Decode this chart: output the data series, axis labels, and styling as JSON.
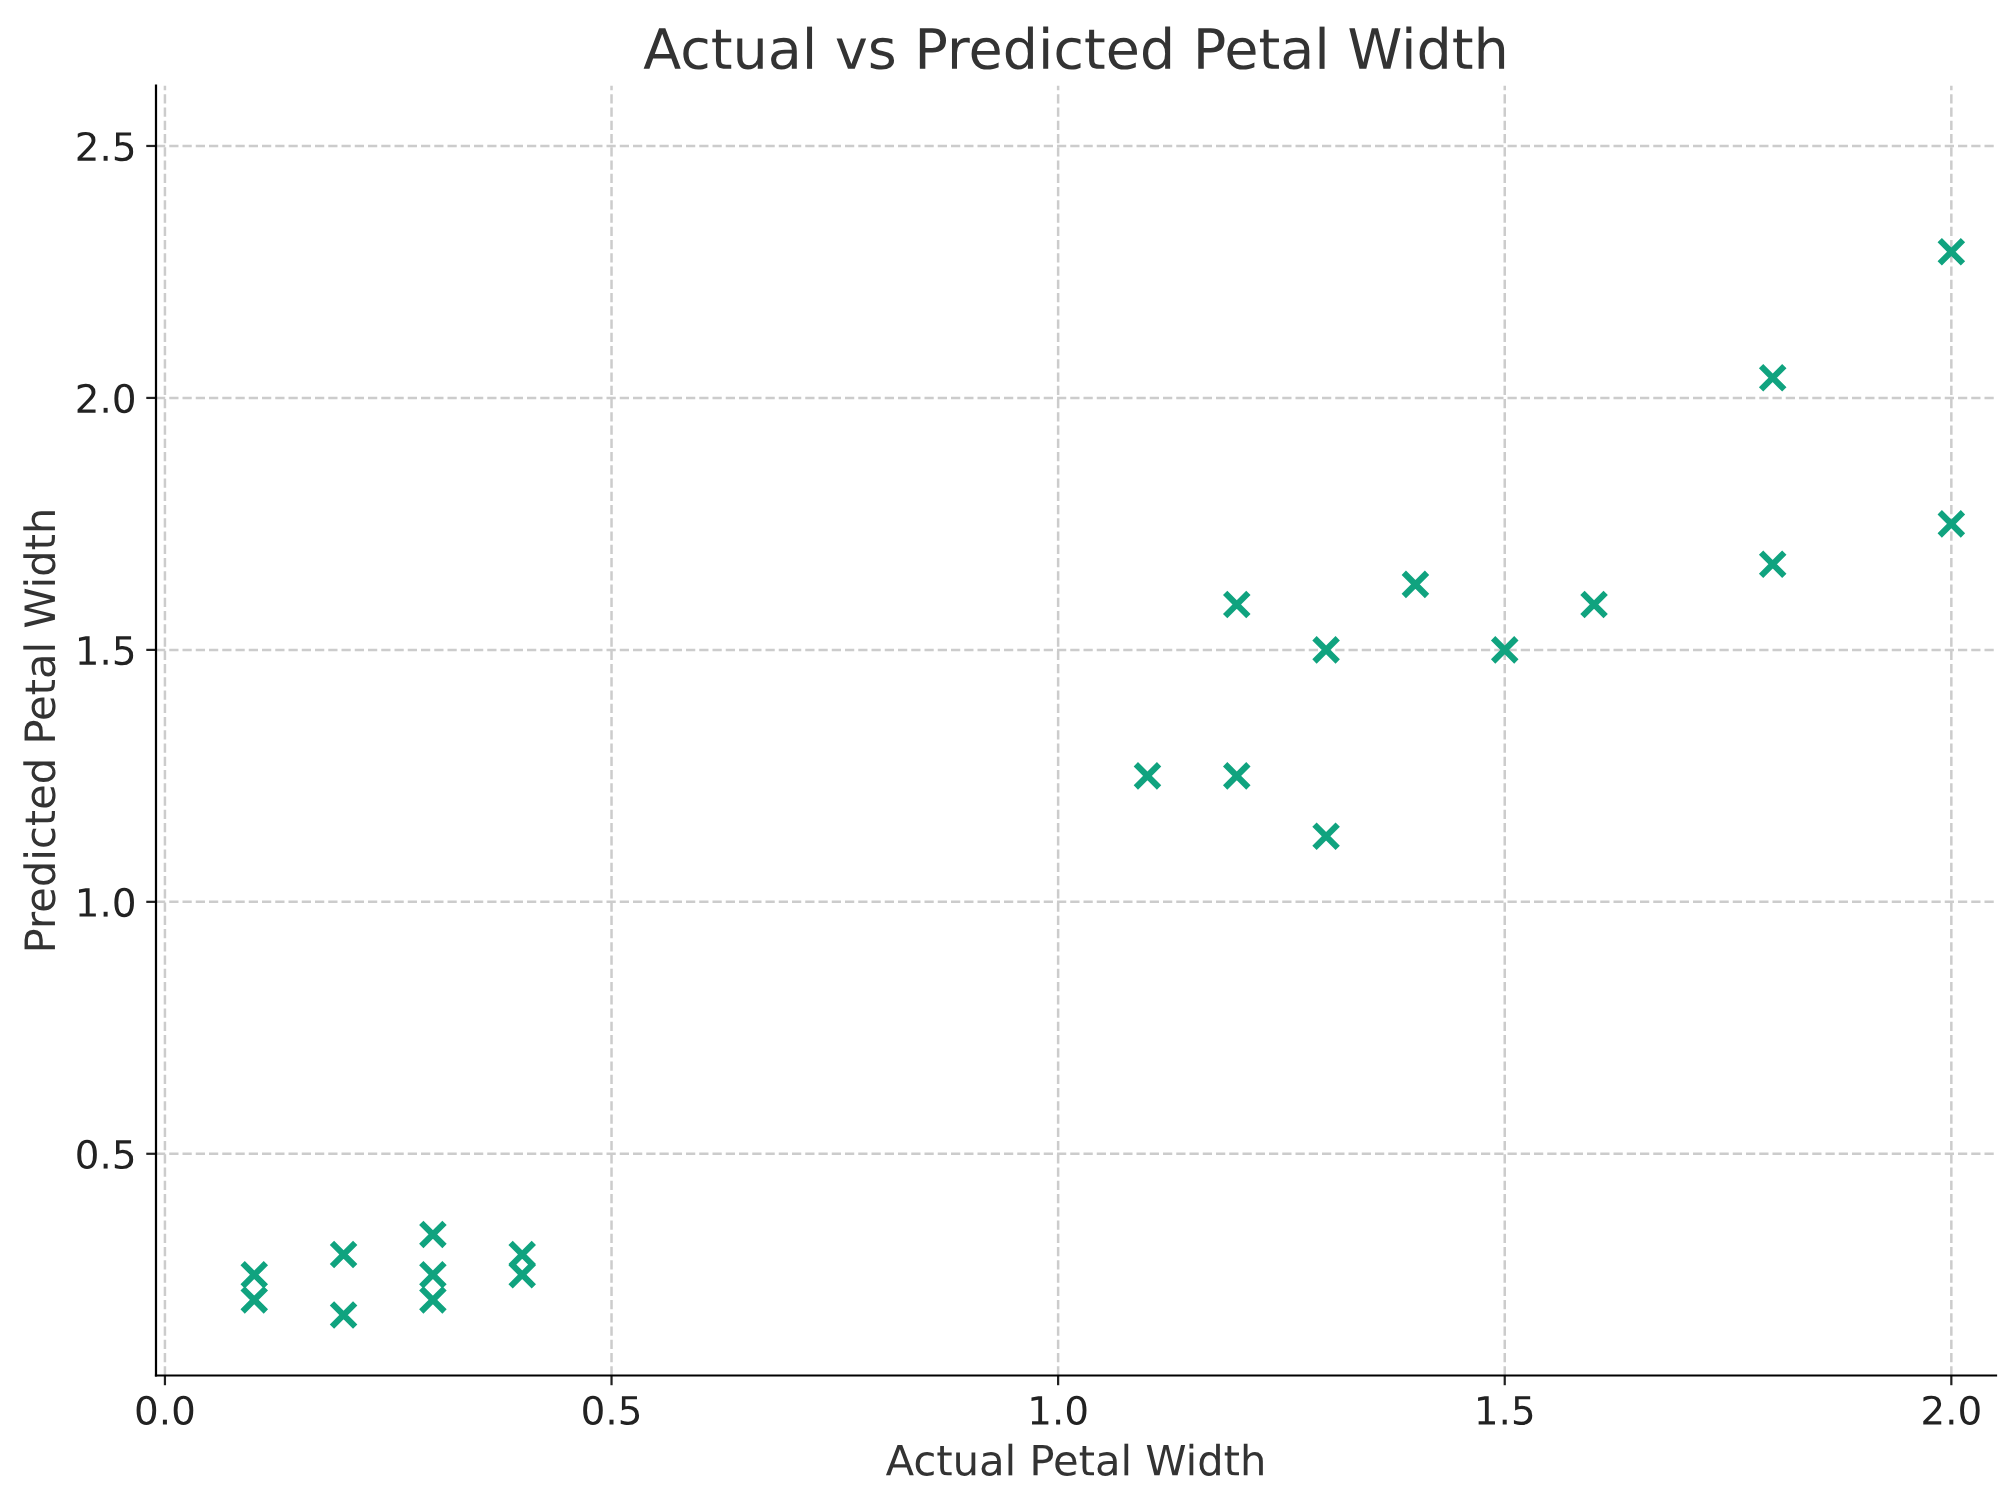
{
  "chart_data": {
    "type": "scatter",
    "title": "Actual vs Predicted Petal Width",
    "xlabel": "Actual Petal Width",
    "ylabel": "Predicted Petal Width",
    "x": [
      0.1,
      0.1,
      0.2,
      0.2,
      0.3,
      0.3,
      0.3,
      0.4,
      0.4,
      1.1,
      1.2,
      1.2,
      1.3,
      1.3,
      1.4,
      1.5,
      1.6,
      1.8,
      1.8,
      2.0,
      2.0
    ],
    "values": [
      0.26,
      0.21,
      0.3,
      0.18,
      0.34,
      0.26,
      0.21,
      0.3,
      0.26,
      1.25,
      1.59,
      1.25,
      1.5,
      1.13,
      1.63,
      1.5,
      1.59,
      2.04,
      1.67,
      2.29,
      1.75
    ],
    "color": "#10a37f",
    "marker": "cross",
    "xlim": [
      -0.01,
      2.05
    ],
    "ylim": [
      0.06,
      2.62
    ],
    "xticks": [
      {
        "value": 0,
        "label": "0.0"
      },
      0.5,
      {
        "value": 1,
        "label": "1.0"
      },
      1.5,
      {
        "value": 2,
        "label": "2.0"
      }
    ],
    "yticks": [
      0.5,
      {
        "value": 1,
        "label": "1.0"
      },
      1.5,
      {
        "value": 2,
        "label": "2.0"
      },
      2.5
    ],
    "grid": true
  }
}
